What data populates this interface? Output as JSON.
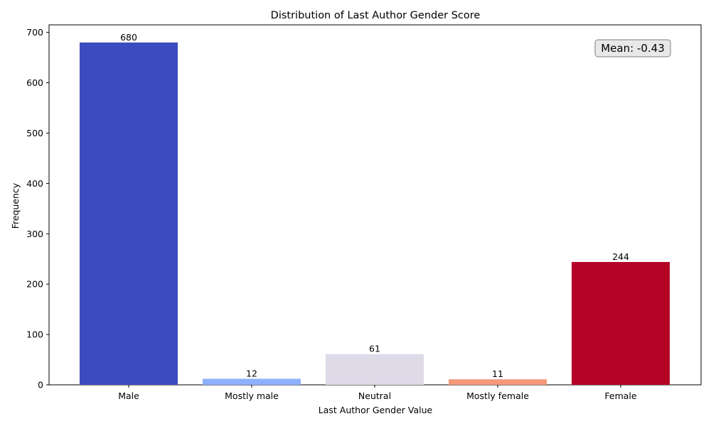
{
  "chart_data": {
    "type": "bar",
    "title": "Distribution of Last Author Gender Score",
    "xlabel": "Last Author Gender Value",
    "ylabel": "Frequency",
    "categories": [
      "Male",
      "Mostly male",
      "Neutral",
      "Mostly female",
      "Female"
    ],
    "values": [
      680,
      12,
      61,
      11,
      244
    ],
    "value_labels": [
      "680",
      "12",
      "61",
      "11",
      "244"
    ],
    "colors": [
      "#3b4cc0",
      "#8db0fe",
      "#dfdae8",
      "#f4987a",
      "#b40426"
    ],
    "ylim": [
      0,
      715
    ],
    "yticks": [
      0,
      100,
      200,
      300,
      400,
      500,
      600,
      700
    ],
    "ytick_labels": [
      "0",
      "100",
      "200",
      "300",
      "400",
      "500",
      "600",
      "700"
    ],
    "grid": false,
    "annotation": {
      "text": "Mean: -0.43",
      "placement": "top-right",
      "background": "#e8e8e8",
      "border": "#7f7f7f"
    }
  }
}
